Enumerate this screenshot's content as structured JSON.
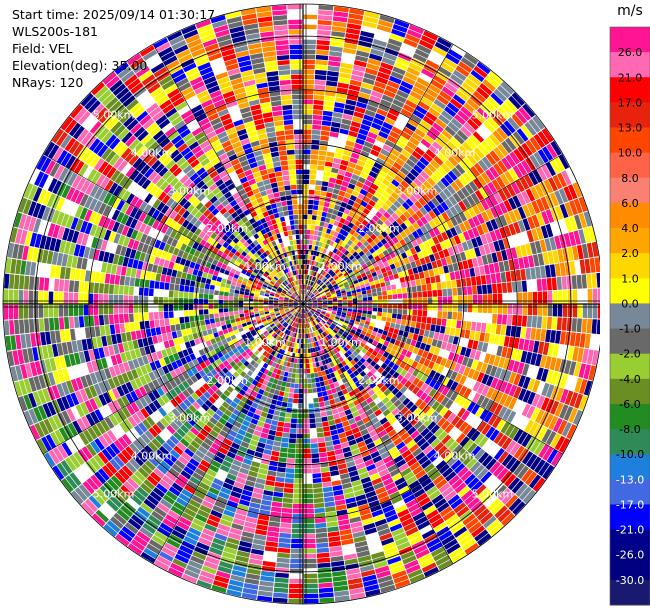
{
  "header": {
    "start_time": "Start time: 2025/09/14 01:30:17",
    "instrument": "WLS200s-181",
    "field": "Field: VEL",
    "elevation": "Elevation(deg): 35.00",
    "nrays": "NRays: 120"
  },
  "chart_data": {
    "type": "heatmap",
    "projection": "polar PPI",
    "field": "VEL",
    "n_rays": 120,
    "range_rings_km": [
      1.0,
      2.0,
      3.0,
      4.0,
      5.0
    ],
    "range_labels": [
      "1.00km",
      "2.00km",
      "3.00km",
      "4.00km",
      "5.00km"
    ],
    "max_range_km": 5.6,
    "grid": true,
    "colorbar": {
      "unit": "m/s",
      "tick_labels": [
        "26.0",
        "21.0",
        "17.0",
        "13.0",
        "10.0",
        "8.0",
        "6.0",
        "4.0",
        "2.0",
        "1.0",
        "0.0",
        "-1.0",
        "-2.0",
        "-4.0",
        "-6.0",
        "-8.0",
        "-10.0",
        "-13.0",
        "-17.0",
        "-21.0",
        "-26.0",
        "-30.0"
      ],
      "bins": [
        {
          "color": "#ff1493"
        },
        {
          "color": "#ff69b4"
        },
        {
          "color": "#ff0000"
        },
        {
          "color": "#e8230d"
        },
        {
          "color": "#ff4500"
        },
        {
          "color": "#ff6347"
        },
        {
          "color": "#fa8072"
        },
        {
          "color": "#ff8c00"
        },
        {
          "color": "#ffa500"
        },
        {
          "color": "#ffd700"
        },
        {
          "color": "#ffff00"
        },
        {
          "color": "#778899"
        },
        {
          "color": "#696969"
        },
        {
          "color": "#9acd32"
        },
        {
          "color": "#6b8e23"
        },
        {
          "color": "#228b22"
        },
        {
          "color": "#2e8b57"
        },
        {
          "color": "#1e7fdc"
        },
        {
          "color": "#4169e1"
        },
        {
          "color": "#0000ff"
        },
        {
          "color": "#00008b"
        },
        {
          "color": "#000080"
        },
        {
          "color": "#191970"
        }
      ]
    }
  }
}
